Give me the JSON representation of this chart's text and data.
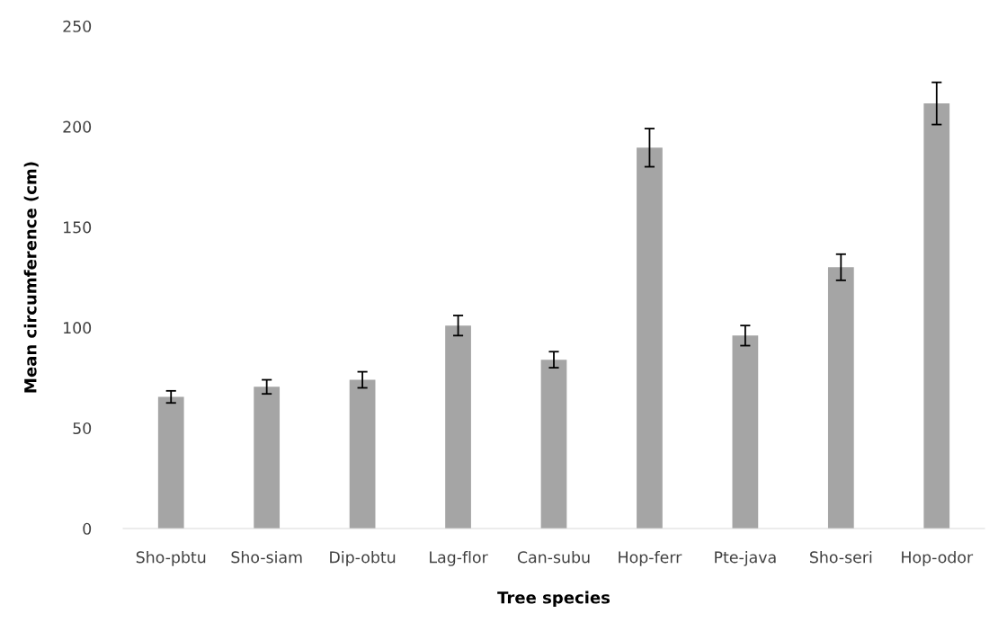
{
  "chart_data": {
    "type": "bar",
    "xlabel": "Tree species",
    "ylabel": "Mean circumference (cm)",
    "categories": [
      "Sho-pbtu",
      "Sho-siam",
      "Dip-obtu",
      "Lag-flor",
      "Can-subu",
      "Hop-ferr",
      "Pte-java",
      "Sho-seri",
      "Hop-odor"
    ],
    "values": [
      65.5,
      70.5,
      74,
      101,
      84,
      189.5,
      96,
      130,
      211.5
    ],
    "errors": [
      3,
      3.5,
      4,
      5,
      4,
      9.5,
      5,
      6.5,
      10.5
    ],
    "color": "#a5a5a5",
    "ylim": [
      0,
      250
    ],
    "yticks": [
      0,
      50,
      100,
      150,
      200,
      250
    ],
    "grid": false
  }
}
